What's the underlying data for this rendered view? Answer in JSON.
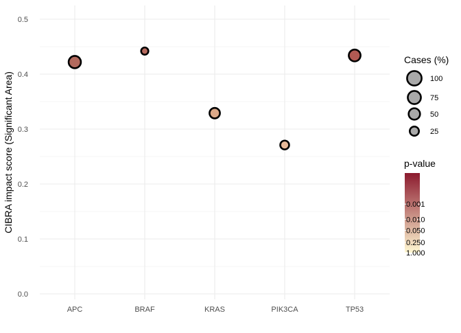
{
  "chart_data": {
    "type": "scatter",
    "title": "",
    "xlabel": "",
    "ylabel": "CIBRA impact score (Significant Area)",
    "categories": [
      "APC",
      "BRAF",
      "KRAS",
      "PIK3CA",
      "TP53"
    ],
    "ylim": [
      -0.01,
      0.525
    ],
    "yticks": [
      0.0,
      0.1,
      0.2,
      0.3,
      0.4,
      0.5
    ],
    "ytick_labels": [
      "0.0",
      "0.1",
      "0.2",
      "0.3",
      "0.4",
      "0.5"
    ],
    "grid": true,
    "points": [
      {
        "gene": "APC",
        "score": 0.422,
        "cases_pct": 62,
        "color": "#b36a5e"
      },
      {
        "gene": "BRAF",
        "score": 0.442,
        "cases_pct": 10,
        "color": "#b5695d"
      },
      {
        "gene": "KRAS",
        "score": 0.329,
        "cases_pct": 38,
        "color": "#dba888"
      },
      {
        "gene": "PIK3CA",
        "score": 0.271,
        "cases_pct": 22,
        "color": "#e6b897"
      },
      {
        "gene": "TP53",
        "score": 0.434,
        "cases_pct": 55,
        "color": "#b05a53"
      }
    ],
    "legend_position": "right",
    "size_legend": {
      "title": "Cases (%)",
      "entries": [
        {
          "label": "100",
          "value": 100
        },
        {
          "label": "75",
          "value": 75
        },
        {
          "label": "50",
          "value": 50
        },
        {
          "label": "25",
          "value": 25
        }
      ],
      "fill_color": "#a9a9a9"
    },
    "color_legend": {
      "title": "p-value",
      "gradient_top": "#8b1a2e",
      "gradient_bottom": "#fff8d2",
      "ticks": [
        {
          "label": "0.001",
          "frac": 0.39
        },
        {
          "label": "0.010",
          "frac": 0.58
        },
        {
          "label": "0.050",
          "frac": 0.72
        },
        {
          "label": "0.250",
          "frac": 0.87
        },
        {
          "label": "1.000",
          "frac": 1.0
        }
      ]
    },
    "colors": {
      "grid": "#ebebeb",
      "tick_text": "#4d4d4d",
      "axis_title": "#000000",
      "point_stroke": "#000000"
    }
  }
}
